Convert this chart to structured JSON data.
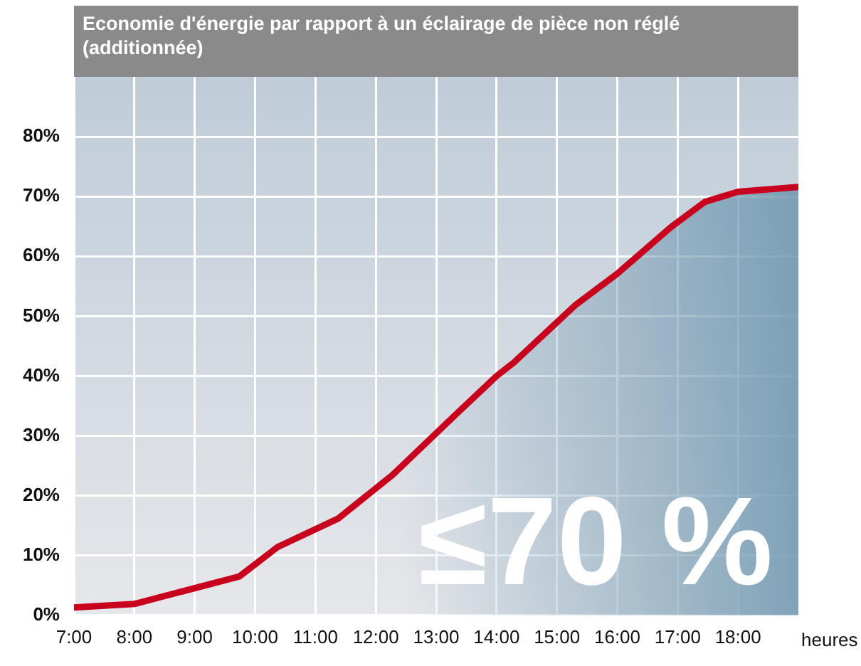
{
  "chart_data": {
    "type": "area",
    "title": "Economie d'énergie par rapport à un éclairage de pièce non réglé (additionnée)",
    "xlabel": "heures",
    "series": [
      {
        "color": "#c8001e",
        "x": [
          7,
          8,
          9.74,
          10.37,
          11.38,
          12.28,
          13.35,
          14,
          14.28,
          15.3,
          16,
          16.89,
          17.45,
          18,
          19
        ],
        "values": [
          1.3,
          1.9,
          6.5,
          11.4,
          16.2,
          23.5,
          33.8,
          40,
          42.2,
          51.8,
          57.1,
          64.9,
          69.1,
          70.8,
          71.6
        ]
      }
    ],
    "xlim": [
      7,
      19
    ],
    "xticks": [
      {
        "value": 7,
        "label": "7:00"
      },
      {
        "value": 8,
        "label": "8:00"
      },
      {
        "value": 9,
        "label": "9:00"
      },
      {
        "value": 10,
        "label": "10:00"
      },
      {
        "value": 11,
        "label": "11:00"
      },
      {
        "value": 12,
        "label": "12:00"
      },
      {
        "value": 13,
        "label": "13:00"
      },
      {
        "value": 14,
        "label": "14:00"
      },
      {
        "value": 15,
        "label": "15:00"
      },
      {
        "value": 16,
        "label": "16:00"
      },
      {
        "value": 17,
        "label": "17:00"
      },
      {
        "value": 18,
        "label": "18:00"
      }
    ],
    "ylim": [
      0,
      90
    ],
    "yticks": [
      {
        "value": 0,
        "label": "0%"
      },
      {
        "value": 10,
        "label": "10%"
      },
      {
        "value": 20,
        "label": "20%"
      },
      {
        "value": 30,
        "label": "30%"
      },
      {
        "value": 40,
        "label": "40%"
      },
      {
        "value": 50,
        "label": "50%"
      },
      {
        "value": 60,
        "label": "60%"
      },
      {
        "value": 70,
        "label": "70%"
      },
      {
        "value": 80,
        "label": "80%"
      }
    ],
    "grid": true,
    "legend": false,
    "annotations": [
      "≤70 %"
    ]
  }
}
